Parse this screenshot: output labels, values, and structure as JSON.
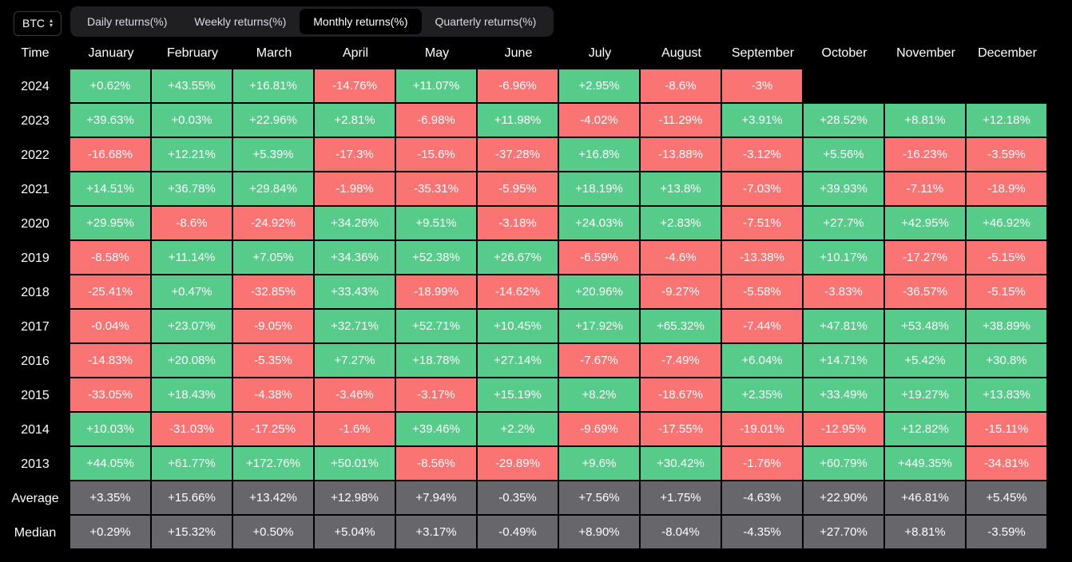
{
  "asset_selector": {
    "value": "BTC"
  },
  "tabs": [
    {
      "label": "Daily returns(%)",
      "active": false
    },
    {
      "label": "Weekly returns(%)",
      "active": false
    },
    {
      "label": "Monthly returns(%)",
      "active": true
    },
    {
      "label": "Quarterly returns(%)",
      "active": false
    }
  ],
  "colors": {
    "positive": "#56cb8a",
    "negative": "#fb7474",
    "summary": "#67676b",
    "background": "#000000"
  },
  "table": {
    "time_header": "Time",
    "months": [
      "January",
      "February",
      "March",
      "April",
      "May",
      "June",
      "July",
      "August",
      "September",
      "October",
      "November",
      "December"
    ],
    "rows": [
      {
        "label": "2024",
        "values": [
          "+0.62%",
          "+43.55%",
          "+16.81%",
          "-14.76%",
          "+11.07%",
          "-6.96%",
          "+2.95%",
          "-8.6%",
          "-3%",
          "",
          "",
          ""
        ]
      },
      {
        "label": "2023",
        "values": [
          "+39.63%",
          "+0.03%",
          "+22.96%",
          "+2.81%",
          "-6.98%",
          "+11.98%",
          "-4.02%",
          "-11.29%",
          "+3.91%",
          "+28.52%",
          "+8.81%",
          "+12.18%"
        ]
      },
      {
        "label": "2022",
        "values": [
          "-16.68%",
          "+12.21%",
          "+5.39%",
          "-17.3%",
          "-15.6%",
          "-37.28%",
          "+16.8%",
          "-13.88%",
          "-3.12%",
          "+5.56%",
          "-16.23%",
          "-3.59%"
        ]
      },
      {
        "label": "2021",
        "values": [
          "+14.51%",
          "+36.78%",
          "+29.84%",
          "-1.98%",
          "-35.31%",
          "-5.95%",
          "+18.19%",
          "+13.8%",
          "-7.03%",
          "+39.93%",
          "-7.11%",
          "-18.9%"
        ]
      },
      {
        "label": "2020",
        "values": [
          "+29.95%",
          "-8.6%",
          "-24.92%",
          "+34.26%",
          "+9.51%",
          "-3.18%",
          "+24.03%",
          "+2.83%",
          "-7.51%",
          "+27.7%",
          "+42.95%",
          "+46.92%"
        ]
      },
      {
        "label": "2019",
        "values": [
          "-8.58%",
          "+11.14%",
          "+7.05%",
          "+34.36%",
          "+52.38%",
          "+26.67%",
          "-6.59%",
          "-4.6%",
          "-13.38%",
          "+10.17%",
          "-17.27%",
          "-5.15%"
        ]
      },
      {
        "label": "2018",
        "values": [
          "-25.41%",
          "+0.47%",
          "-32.85%",
          "+33.43%",
          "-18.99%",
          "-14.62%",
          "+20.96%",
          "-9.27%",
          "-5.58%",
          "-3.83%",
          "-36.57%",
          "-5.15%"
        ]
      },
      {
        "label": "2017",
        "values": [
          "-0.04%",
          "+23.07%",
          "-9.05%",
          "+32.71%",
          "+52.71%",
          "+10.45%",
          "+17.92%",
          "+65.32%",
          "-7.44%",
          "+47.81%",
          "+53.48%",
          "+38.89%"
        ]
      },
      {
        "label": "2016",
        "values": [
          "-14.83%",
          "+20.08%",
          "-5.35%",
          "+7.27%",
          "+18.78%",
          "+27.14%",
          "-7.67%",
          "-7.49%",
          "+6.04%",
          "+14.71%",
          "+5.42%",
          "+30.8%"
        ]
      },
      {
        "label": "2015",
        "values": [
          "-33.05%",
          "+18.43%",
          "-4.38%",
          "-3.46%",
          "-3.17%",
          "+15.19%",
          "+8.2%",
          "-18.67%",
          "+2.35%",
          "+33.49%",
          "+19.27%",
          "+13.83%"
        ]
      },
      {
        "label": "2014",
        "values": [
          "+10.03%",
          "-31.03%",
          "-17.25%",
          "-1.6%",
          "+39.46%",
          "+2.2%",
          "-9.69%",
          "-17.55%",
          "-19.01%",
          "-12.95%",
          "+12.82%",
          "-15.11%"
        ]
      },
      {
        "label": "2013",
        "values": [
          "+44.05%",
          "+61.77%",
          "+172.76%",
          "+50.01%",
          "-8.56%",
          "-29.89%",
          "+9.6%",
          "+30.42%",
          "-1.76%",
          "+60.79%",
          "+449.35%",
          "-34.81%"
        ]
      }
    ],
    "summary_rows": [
      {
        "label": "Average",
        "values": [
          "+3.35%",
          "+15.66%",
          "+13.42%",
          "+12.98%",
          "+7.94%",
          "-0.35%",
          "+7.56%",
          "+1.75%",
          "-4.63%",
          "+22.90%",
          "+46.81%",
          "+5.45%"
        ]
      },
      {
        "label": "Median",
        "values": [
          "+0.29%",
          "+15.32%",
          "+0.50%",
          "+5.04%",
          "+3.17%",
          "-0.49%",
          "+8.90%",
          "-8.04%",
          "-4.35%",
          "+27.70%",
          "+8.81%",
          "-3.59%"
        ]
      }
    ]
  }
}
